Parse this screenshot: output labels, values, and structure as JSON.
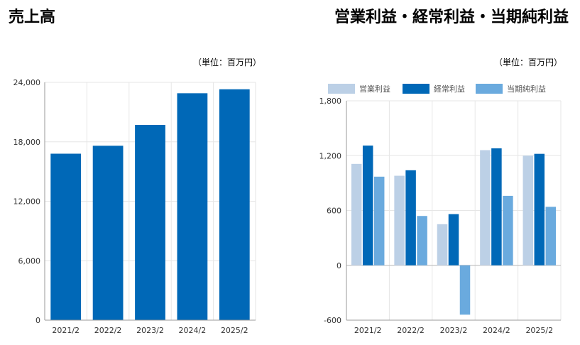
{
  "chart_data": [
    {
      "type": "bar",
      "title": "売上高",
      "unit_label": "（単位：百万円）",
      "categories": [
        "2021/2",
        "2022/2",
        "2023/2",
        "2024/2",
        "2025/2"
      ],
      "values": [
        16800,
        17600,
        19700,
        22900,
        23300
      ],
      "yticks": [
        "24,000",
        "18,000",
        "12,000",
        "6,000",
        "0"
      ],
      "ylim": [
        0,
        24000
      ],
      "grid": true,
      "color": "#0068b7"
    },
    {
      "type": "bar",
      "title": "営業利益・経常利益・当期純利益",
      "unit_label": "（単位：百万円）",
      "categories": [
        "2021/2",
        "2022/2",
        "2023/2",
        "2024/2",
        "2025/2"
      ],
      "yticks": [
        "1,800",
        "1,200",
        "600",
        "0",
        "-600"
      ],
      "ylim": [
        -600,
        1800
      ],
      "grid": true,
      "legend_position": "top",
      "series": [
        {
          "name": "営業利益",
          "color": "#bcd0e6",
          "values": [
            1110,
            980,
            450,
            1260,
            1200
          ]
        },
        {
          "name": "経常利益",
          "color": "#0068b7",
          "values": [
            1310,
            1040,
            560,
            1280,
            1220
          ]
        },
        {
          "name": "当期純利益",
          "color": "#6aaade",
          "values": [
            970,
            540,
            -540,
            760,
            640
          ]
        }
      ]
    }
  ]
}
